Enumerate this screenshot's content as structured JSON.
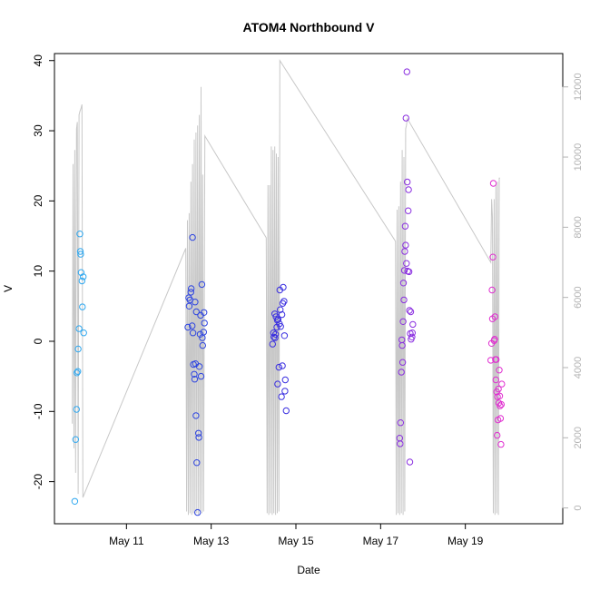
{
  "chart_data": {
    "type": "scatter",
    "title": "ATOM4 Northbound V",
    "xlabel": "Date",
    "ylabel": "V",
    "x_ticks": [
      "May 11",
      "May 13",
      "May 15",
      "May 17",
      "May 19"
    ],
    "y_ticks": [
      "-20",
      "-10",
      "0",
      "10",
      "20",
      "30",
      "40"
    ],
    "y_right_ticks": [
      "0",
      "2000",
      "4000",
      "6000",
      "8000",
      "10000",
      "12000"
    ],
    "xlim": [
      9.3,
      21.3
    ],
    "ylim": [
      -26,
      41
    ],
    "y_right_lim": [
      -450,
      12950
    ],
    "colors": {
      "line": "#c8c8c8",
      "box": "#000000",
      "right_axis": "#b3b3b3",
      "day1": "#2fa8f0",
      "day2": "#2f46e0",
      "day3": "#3a2fe0",
      "day4": "#8a2fe0",
      "day5": "#e02fd0"
    },
    "series": [
      {
        "color_key": "day1",
        "points": [
          [
            9.78,
            -22.8
          ],
          [
            9.8,
            -14
          ],
          [
            9.82,
            -9.7
          ],
          [
            9.83,
            -4.5
          ],
          [
            9.85,
            -4.3
          ],
          [
            9.86,
            -1.1
          ],
          [
            9.88,
            1.8
          ],
          [
            9.9,
            15.3
          ],
          [
            9.91,
            12.8
          ],
          [
            9.92,
            12.4
          ],
          [
            9.93,
            9.8
          ],
          [
            9.95,
            8.6
          ],
          [
            9.96,
            4.9
          ],
          [
            9.98,
            9.2
          ],
          [
            9.99,
            1.2
          ]
        ]
      },
      {
        "color_key": "day2",
        "points": [
          [
            12.45,
            2
          ],
          [
            12.47,
            6.2
          ],
          [
            12.48,
            5
          ],
          [
            12.5,
            5.9
          ],
          [
            12.52,
            7
          ],
          [
            12.53,
            7.5
          ],
          [
            12.55,
            2.2
          ],
          [
            12.56,
            14.8
          ],
          [
            12.57,
            1.2
          ],
          [
            12.58,
            -3.3
          ],
          [
            12.6,
            -4.7
          ],
          [
            12.61,
            -5.4
          ],
          [
            12.62,
            5.6
          ],
          [
            12.63,
            -3.2
          ],
          [
            12.64,
            -10.6
          ],
          [
            12.65,
            4.2
          ],
          [
            12.66,
            -17.3
          ],
          [
            12.68,
            -24.4
          ],
          [
            12.7,
            -13.1
          ],
          [
            12.71,
            -13.7
          ],
          [
            12.72,
            -3.6
          ],
          [
            12.74,
            1
          ],
          [
            12.75,
            3.7
          ],
          [
            12.76,
            -5
          ],
          [
            12.78,
            8.1
          ],
          [
            12.79,
            0.5
          ],
          [
            12.8,
            -0.6
          ],
          [
            12.82,
            1.3
          ],
          [
            12.83,
            4.1
          ],
          [
            12.84,
            2.6
          ]
        ]
      },
      {
        "color_key": "day3",
        "points": [
          [
            14.45,
            -0.4
          ],
          [
            14.47,
            1.2
          ],
          [
            14.48,
            0.6
          ],
          [
            14.5,
            3.9
          ],
          [
            14.51,
            0.5
          ],
          [
            14.52,
            1
          ],
          [
            14.53,
            3.5
          ],
          [
            14.55,
            2
          ],
          [
            14.56,
            3
          ],
          [
            14.57,
            -6.1
          ],
          [
            14.58,
            3.1
          ],
          [
            14.6,
            -3.7
          ],
          [
            14.61,
            2.5
          ],
          [
            14.62,
            7.3
          ],
          [
            14.63,
            4.5
          ],
          [
            14.64,
            2.1
          ],
          [
            14.66,
            -7.9
          ],
          [
            14.67,
            3.8
          ],
          [
            14.68,
            -3.5
          ],
          [
            14.69,
            5.4
          ],
          [
            14.7,
            7.7
          ],
          [
            14.72,
            5.7
          ],
          [
            14.73,
            0.8
          ],
          [
            14.74,
            -7.1
          ],
          [
            14.75,
            -5.5
          ],
          [
            14.77,
            -9.9
          ]
        ]
      },
      {
        "color_key": "day4",
        "points": [
          [
            17.45,
            -13.8
          ],
          [
            17.46,
            -14.6
          ],
          [
            17.47,
            -11.6
          ],
          [
            17.49,
            -4.4
          ],
          [
            17.5,
            0.2
          ],
          [
            17.51,
            -0.6
          ],
          [
            17.52,
            -3
          ],
          [
            17.53,
            2.8
          ],
          [
            17.54,
            8.3
          ],
          [
            17.55,
            5.9
          ],
          [
            17.56,
            10.1
          ],
          [
            17.57,
            12.8
          ],
          [
            17.58,
            16.4
          ],
          [
            17.59,
            13.7
          ],
          [
            17.6,
            31.8
          ],
          [
            17.61,
            11.1
          ],
          [
            17.62,
            38.4
          ],
          [
            17.63,
            22.7
          ],
          [
            17.64,
            10
          ],
          [
            17.65,
            18.6
          ],
          [
            17.66,
            21.6
          ],
          [
            17.67,
            9.9
          ],
          [
            17.68,
            4.4
          ],
          [
            17.69,
            -17.2
          ],
          [
            17.7,
            1.1
          ],
          [
            17.71,
            4.2
          ],
          [
            17.72,
            0.3
          ],
          [
            17.74,
            0.6
          ],
          [
            17.75,
            1.2
          ],
          [
            17.76,
            2.4
          ]
        ]
      },
      {
        "color_key": "day5",
        "points": [
          [
            19.6,
            -2.7
          ],
          [
            19.62,
            -0.3
          ],
          [
            19.63,
            7.3
          ],
          [
            19.64,
            3.2
          ],
          [
            19.65,
            12
          ],
          [
            19.66,
            22.5
          ],
          [
            19.68,
            0.1
          ],
          [
            19.69,
            0.3
          ],
          [
            19.7,
            3.5
          ],
          [
            19.71,
            -2.6
          ],
          [
            19.72,
            -5.5
          ],
          [
            19.73,
            -2.6
          ],
          [
            19.74,
            -7.2
          ],
          [
            19.75,
            -13.4
          ],
          [
            19.76,
            -7.9
          ],
          [
            19.77,
            -11.2
          ],
          [
            19.78,
            -6.8
          ],
          [
            19.79,
            -8.8
          ],
          [
            19.8,
            -4.1
          ],
          [
            19.81,
            -7.8
          ],
          [
            19.82,
            -9.2
          ],
          [
            19.83,
            -11
          ],
          [
            19.84,
            -14.7
          ],
          [
            19.85,
            -9
          ],
          [
            19.86,
            -6.1
          ]
        ]
      }
    ],
    "secondary_line": [
      [
        9.72,
        2400
      ],
      [
        9.74,
        9800
      ],
      [
        9.76,
        1700
      ],
      [
        9.78,
        10200
      ],
      [
        9.8,
        1000
      ],
      [
        9.82,
        10800
      ],
      [
        9.84,
        11000
      ],
      [
        9.86,
        400
      ],
      [
        9.88,
        11200
      ],
      [
        9.9,
        11300
      ],
      [
        9.93,
        11400
      ],
      [
        9.95,
        11500
      ],
      [
        9.97,
        300
      ],
      [
        12.4,
        7400
      ],
      [
        12.42,
        -100
      ],
      [
        12.44,
        8200
      ],
      [
        12.46,
        -200
      ],
      [
        12.48,
        8400
      ],
      [
        12.5,
        -150
      ],
      [
        12.52,
        9300
      ],
      [
        12.54,
        -200
      ],
      [
        12.56,
        9800
      ],
      [
        12.58,
        -150
      ],
      [
        12.6,
        10500
      ],
      [
        12.62,
        -200
      ],
      [
        12.64,
        10700
      ],
      [
        12.66,
        -150
      ],
      [
        12.68,
        10900
      ],
      [
        12.7,
        -200
      ],
      [
        12.72,
        11200
      ],
      [
        12.74,
        -100
      ],
      [
        12.76,
        12000
      ],
      [
        12.78,
        -150
      ],
      [
        12.8,
        9500
      ],
      [
        12.82,
        -100
      ],
      [
        12.85,
        10600
      ],
      [
        14.3,
        7700
      ],
      [
        14.32,
        -150
      ],
      [
        14.34,
        9200
      ],
      [
        14.36,
        -200
      ],
      [
        14.38,
        9200
      ],
      [
        14.4,
        -150
      ],
      [
        14.42,
        10300
      ],
      [
        14.44,
        -200
      ],
      [
        14.46,
        10200
      ],
      [
        14.48,
        -150
      ],
      [
        14.5,
        10300
      ],
      [
        14.52,
        -200
      ],
      [
        14.54,
        10100
      ],
      [
        14.56,
        -150
      ],
      [
        14.58,
        10000
      ],
      [
        14.6,
        -100
      ],
      [
        14.62,
        12750
      ],
      [
        17.35,
        7600
      ],
      [
        17.37,
        -200
      ],
      [
        17.39,
        8500
      ],
      [
        17.41,
        -150
      ],
      [
        17.43,
        8600
      ],
      [
        17.45,
        -200
      ],
      [
        17.47,
        9300
      ],
      [
        17.49,
        -150
      ],
      [
        17.51,
        10200
      ],
      [
        17.53,
        -200
      ],
      [
        17.55,
        10000
      ],
      [
        17.57,
        -100
      ],
      [
        17.59,
        10800
      ],
      [
        17.61,
        10900
      ],
      [
        17.63,
        11100
      ],
      [
        19.6,
        7000
      ],
      [
        19.62,
        8800
      ],
      [
        19.64,
        8300
      ],
      [
        19.66,
        -150
      ],
      [
        19.68,
        8800
      ],
      [
        19.7,
        -200
      ],
      [
        19.72,
        9200
      ],
      [
        19.74,
        -150
      ],
      [
        19.76,
        9300
      ],
      [
        19.78,
        -200
      ],
      [
        19.8,
        9400
      ],
      [
        19.82,
        9400
      ]
    ]
  }
}
